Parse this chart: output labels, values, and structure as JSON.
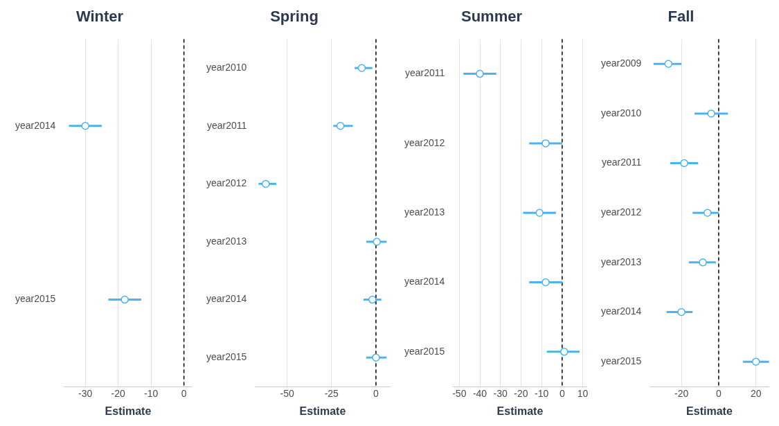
{
  "chart_data": [
    {
      "type": "scatter",
      "orientation": "horizontal",
      "title": "Winter",
      "xlabel": "Estimate",
      "categories": [
        "year2014",
        "year2015"
      ],
      "color": "#4db3ee",
      "marker": "circle",
      "grid": "x",
      "values": [
        -30,
        -18
      ],
      "errors": [
        [
          -35,
          -25
        ],
        [
          -23,
          -13
        ]
      ],
      "xlim": [
        -36.5,
        2.5
      ],
      "xticks": [
        -30,
        -20,
        -10,
        0
      ],
      "ref_lines": [
        {
          "axis": "x",
          "value": 0,
          "line_style": "dashed",
          "color": "#000000"
        }
      ]
    },
    {
      "type": "scatter",
      "orientation": "horizontal",
      "title": "Spring",
      "xlabel": "Estimate",
      "categories": [
        "year2010",
        "year2011",
        "year2012",
        "year2013",
        "year2014",
        "year2015"
      ],
      "color": "#4db3ee",
      "marker": "circle",
      "grid": "x",
      "values": [
        -8,
        -20,
        -62,
        0.5,
        -2,
        0
      ],
      "errors": [
        [
          -12,
          -2
        ],
        [
          -24,
          -13
        ],
        [
          -66,
          -56
        ],
        [
          -5.5,
          6
        ],
        [
          -7,
          3
        ],
        [
          -5.5,
          6
        ]
      ],
      "xlim": [
        -68,
        8
      ],
      "xticks": [
        -50,
        -25,
        0
      ],
      "ref_lines": [
        {
          "axis": "x",
          "value": 0,
          "line_style": "dashed",
          "color": "#000000"
        }
      ]
    },
    {
      "type": "scatter",
      "orientation": "horizontal",
      "title": "Summer",
      "xlabel": "Estimate",
      "categories": [
        "year2011",
        "year2012",
        "year2013",
        "year2014",
        "year2015"
      ],
      "color": "#4db3ee",
      "marker": "circle",
      "grid": "x",
      "values": [
        -40,
        -8,
        -11,
        -8,
        1
      ],
      "errors": [
        [
          -48,
          -32
        ],
        [
          -16,
          0
        ],
        [
          -19,
          -3
        ],
        [
          -16,
          0
        ],
        [
          -7.5,
          8.5
        ]
      ],
      "xlim": [
        -53,
        12
      ],
      "xticks": [
        -50,
        -40,
        -30,
        -20,
        -10,
        0,
        10
      ],
      "ref_lines": [
        {
          "axis": "x",
          "value": 0,
          "line_style": "dashed",
          "color": "#000000"
        }
      ]
    },
    {
      "type": "scatter",
      "orientation": "horizontal",
      "title": "Fall",
      "xlabel": "Estimate",
      "categories": [
        "year2009",
        "year2010",
        "year2011",
        "year2012",
        "year2013",
        "year2014",
        "year2015"
      ],
      "color": "#4db3ee",
      "marker": "circle",
      "grid": "x",
      "values": [
        -27,
        -4,
        -18.5,
        -6,
        -8.5,
        -20,
        20
      ],
      "errors": [
        [
          -35,
          -20
        ],
        [
          -13,
          5
        ],
        [
          -26,
          -11
        ],
        [
          -14,
          0
        ],
        [
          -16,
          -1.5
        ],
        [
          -28,
          -14
        ],
        [
          13,
          27
        ]
      ],
      "xlim": [
        -37,
        27
      ],
      "xticks": [
        -20,
        0,
        20
      ],
      "ref_lines": [
        {
          "axis": "x",
          "value": 0,
          "line_style": "dashed",
          "color": "#000000"
        }
      ]
    }
  ]
}
